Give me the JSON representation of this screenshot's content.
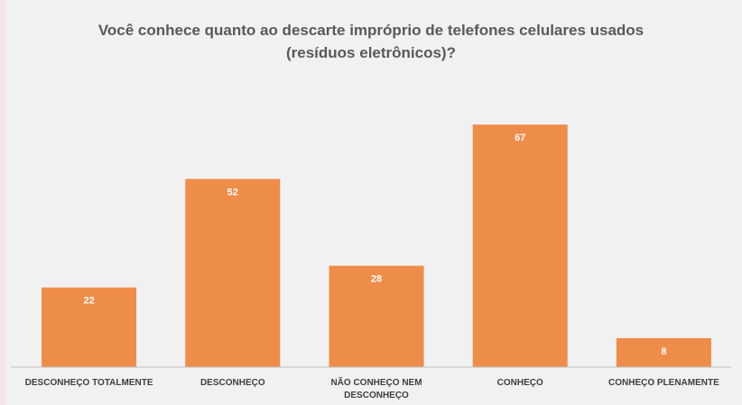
{
  "chart_data": {
    "type": "bar",
    "title": "Você conhece quanto ao descarte impróprio de telefones celulares usados (resíduos eletrônicos)?",
    "categories": [
      "DESCONHEÇO TOTALMENTE",
      "DESCONHEÇO",
      "NÃO CONHEÇO NEM DESCONHEÇO",
      "CONHEÇO",
      "CONHEÇO PLENAMENTE"
    ],
    "values": [
      22,
      52,
      28,
      67,
      8
    ],
    "color": "#ee8c49",
    "ylim": [
      0,
      80
    ]
  }
}
